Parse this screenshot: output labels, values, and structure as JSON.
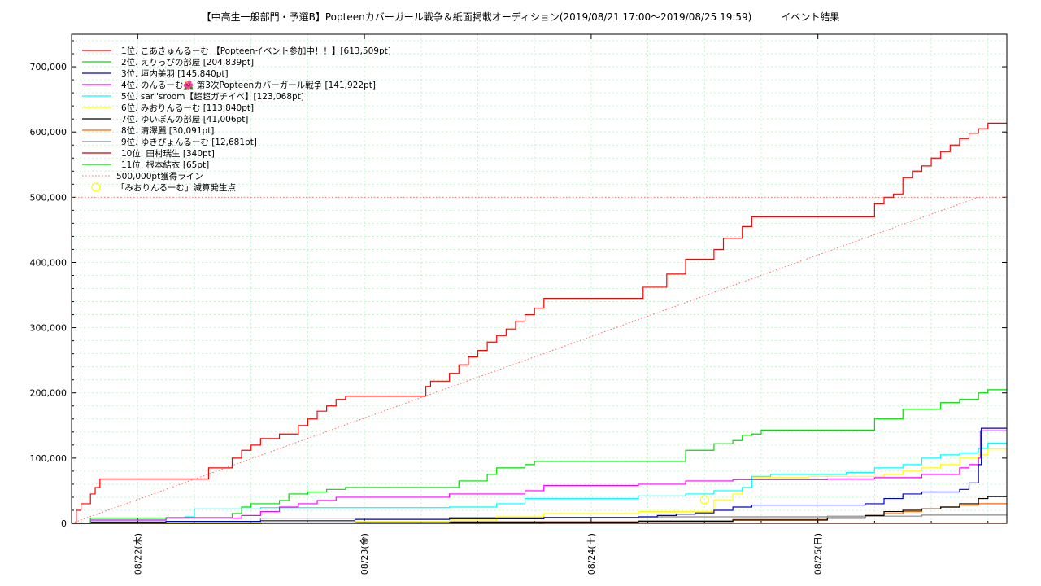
{
  "chart_data": {
    "type": "line",
    "title": "【中高生一般部門・予選B】Popteenカバーガール戦争＆紙面掲載オーディション(2019/08/21 17:00〜2019/08/25 19:59)　　　イベント結果",
    "xlabel": "",
    "ylabel": "",
    "x_unit": "hours since 2019/08/21 17:00",
    "xlim": [
      0,
      99
    ],
    "ylim": [
      0,
      750000
    ],
    "y_ticks": [
      {
        "value": 0,
        "label": "0"
      },
      {
        "value": 100000,
        "label": "100,000"
      },
      {
        "value": 200000,
        "label": "200,000"
      },
      {
        "value": 300000,
        "label": "300,000"
      },
      {
        "value": 400000,
        "label": "400,000"
      },
      {
        "value": 500000,
        "label": "500,000"
      },
      {
        "value": 600000,
        "label": "600,000"
      },
      {
        "value": 700000,
        "label": "700,000"
      }
    ],
    "x_ticks": [
      {
        "value": 7,
        "label": "08/22(木)"
      },
      {
        "value": 31,
        "label": "08/23(金)"
      },
      {
        "value": 55,
        "label": "08/24(土)"
      },
      {
        "value": 79,
        "label": "08/25(日)"
      }
    ],
    "grid": true,
    "legend_position": "top-left",
    "series": [
      {
        "name": "1位. こあきゅんるーむ 【Popteenイベント参加中！！】[613,509pt]",
        "color": "#ff0000",
        "x": [
          0,
          0.5,
          1,
          2,
          2.5,
          3,
          14,
          14.5,
          16,
          17,
          18,
          19,
          20,
          22,
          24,
          25,
          26,
          27,
          28,
          29,
          37,
          37.5,
          38,
          40,
          41,
          42,
          43,
          44,
          45,
          46,
          47,
          48,
          49,
          50,
          52,
          60,
          60.5,
          62,
          63,
          64,
          65,
          68,
          69,
          70,
          71,
          72,
          73,
          74,
          76,
          77,
          84,
          85,
          86,
          87,
          88,
          89,
          90,
          91,
          92,
          93,
          94,
          95,
          96,
          97,
          99
        ],
        "values": [
          0,
          20000,
          30000,
          45000,
          55000,
          68000,
          68000,
          85000,
          85000,
          100000,
          112000,
          120000,
          130000,
          137000,
          150000,
          160000,
          172000,
          180000,
          190000,
          195000,
          195000,
          210000,
          218000,
          230000,
          243000,
          255000,
          265000,
          278000,
          288000,
          298000,
          310000,
          320000,
          330000,
          345000,
          345000,
          345000,
          362000,
          362000,
          382000,
          382000,
          405000,
          420000,
          437000,
          437000,
          455000,
          470000,
          470000,
          470000,
          470000,
          470000,
          470000,
          490000,
          500000,
          505000,
          530000,
          540000,
          548000,
          560000,
          570000,
          580000,
          590000,
          598000,
          605000,
          613509,
          613509
        ]
      },
      {
        "name": "2位. えりっぴの部屋 [204,839pt]",
        "color": "#00dd00",
        "x": [
          0,
          2,
          10,
          17,
          18,
          19,
          22,
          23,
          25,
          27,
          29,
          40,
          41,
          42,
          44,
          45,
          47,
          48,
          49,
          50,
          52,
          55,
          60,
          63,
          65,
          66,
          68,
          70,
          71,
          72,
          73,
          75,
          77,
          84,
          85,
          87,
          88,
          90,
          92,
          94,
          96,
          97,
          99
        ],
        "values": [
          0,
          8000,
          9000,
          15000,
          25000,
          30000,
          35000,
          45000,
          48000,
          52000,
          55000,
          55000,
          65000,
          65000,
          75000,
          85000,
          85000,
          90000,
          95000,
          95000,
          95000,
          95000,
          95000,
          95000,
          112000,
          112000,
          122000,
          127000,
          135000,
          137000,
          143000,
          143000,
          143000,
          143000,
          160000,
          160000,
          175000,
          175000,
          185000,
          190000,
          200000,
          204839,
          204839
        ]
      },
      {
        "name": "3位. 垣内美羽 [145,840pt]",
        "color": "#0000cc",
        "x": [
          0,
          2,
          10,
          20,
          30,
          40,
          50,
          60,
          62,
          64,
          66,
          68,
          70,
          72,
          74,
          76,
          78,
          84,
          86,
          88,
          90,
          92,
          94,
          95,
          96,
          96.3,
          99
        ],
        "values": [
          0,
          2000,
          3000,
          4000,
          6000,
          7000,
          9000,
          10000,
          12000,
          14000,
          16000,
          20000,
          25000,
          28000,
          28000,
          28000,
          28000,
          30000,
          38000,
          45000,
          48000,
          48000,
          52000,
          62000,
          90000,
          145840,
          145840
        ]
      },
      {
        "name": "4位. のんるーむ🌺 第3次Popteenカバーガール戦争 [141,922pt]",
        "color": "#ff00ff",
        "x": [
          0,
          2,
          10,
          18,
          20,
          22,
          24,
          26,
          28,
          30,
          40,
          45,
          48,
          50,
          55,
          60,
          65,
          70,
          75,
          80,
          85,
          90,
          94,
          95,
          96,
          96.2,
          99
        ],
        "values": [
          0,
          5000,
          8000,
          12000,
          18000,
          25000,
          30000,
          35000,
          40000,
          40000,
          45000,
          45000,
          50000,
          58000,
          58000,
          60000,
          65000,
          67000,
          67000,
          68000,
          70000,
          75000,
          85000,
          90000,
          100000,
          141922,
          141922
        ]
      },
      {
        "name": "5位. sari'sroom【超超ガチイベ】[123,068pt]",
        "color": "#00ffff",
        "x": [
          0,
          2,
          10,
          12,
          13,
          20,
          40,
          45,
          48,
          50,
          60,
          65,
          68,
          71,
          72,
          74,
          78,
          82,
          85,
          88,
          90,
          92,
          94,
          96,
          97,
          99
        ],
        "values": [
          0,
          5000,
          8000,
          10000,
          22000,
          24000,
          25000,
          30000,
          38000,
          38000,
          42000,
          45000,
          50000,
          55000,
          72000,
          75000,
          75000,
          78000,
          85000,
          90000,
          100000,
          105000,
          108000,
          115000,
          123068,
          123068
        ]
      },
      {
        "name": "6位. みおりんるーむ [113,840pt]",
        "color": "#ffff00",
        "x": [
          0,
          10,
          20,
          30,
          40,
          45,
          50,
          60,
          62,
          67,
          68,
          70,
          71,
          72,
          78,
          82,
          86,
          88,
          90,
          92,
          94,
          96,
          97,
          99
        ],
        "values": [
          0,
          1000,
          2000,
          3000,
          5000,
          10000,
          15000,
          18000,
          18000,
          18000,
          36000,
          45000,
          55000,
          70000,
          72000,
          72000,
          75000,
          80000,
          85000,
          90000,
          100000,
          105000,
          113840,
          113840
        ]
      },
      {
        "name": "7位. ゆいぽんの部屋 [41,006pt]",
        "color": "#000000",
        "x": [
          0,
          20,
          40,
          60,
          70,
          80,
          84,
          86,
          88,
          90,
          92,
          94,
          96,
          97,
          99
        ],
        "values": [
          0,
          1000,
          2000,
          3000,
          5000,
          8000,
          12000,
          18000,
          20000,
          22000,
          25000,
          30000,
          38000,
          41006,
          41006
        ]
      },
      {
        "name": "8位. 清澤麗 [30,091pt]",
        "color": "#ff6600",
        "x": [
          0,
          20,
          40,
          60,
          70,
          80,
          84,
          86,
          88,
          90,
          92,
          94,
          96,
          99
        ],
        "values": [
          0,
          1000,
          2000,
          4000,
          6000,
          9000,
          12000,
          15000,
          18000,
          22000,
          25000,
          28000,
          30091,
          30091
        ]
      },
      {
        "name": "9位. ゆきぴょんるーむ [12,681pt]",
        "color": "#888888",
        "x": [
          0,
          20,
          40,
          60,
          80,
          90,
          99
        ],
        "values": [
          0,
          8000,
          9000,
          10000,
          11000,
          12681,
          12681
        ]
      },
      {
        "name": "10位. 田村瑞生 [340pt]",
        "color": "#cc0000",
        "x": [
          0,
          50,
          99
        ],
        "values": [
          0,
          200,
          340
        ]
      },
      {
        "name": "11位. 根本結衣 [65pt]",
        "color": "#00cc00",
        "x": [
          0,
          50,
          99
        ],
        "values": [
          0,
          30,
          65
        ]
      }
    ],
    "reference_line": {
      "name": "500,000pt獲得ライン",
      "color": "#ff6666",
      "x": [
        0,
        96
      ],
      "values": [
        0,
        500000
      ]
    },
    "markers": {
      "name": "「みおりんるーむ」減算発生点",
      "color": "#ffff00",
      "points": [
        {
          "x": 67,
          "y": 36000
        }
      ]
    }
  }
}
